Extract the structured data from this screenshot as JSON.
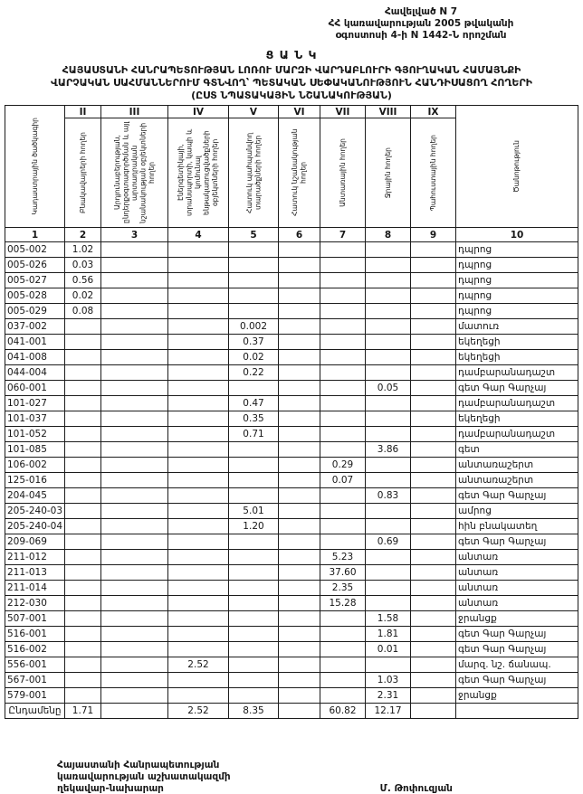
{
  "appendix": {
    "lines": [
      "Հավելված N 7",
      "ՀՀ կառավարության 2005 թվականի",
      "օգոստոսի 4-ի N 1442-Ն որոշման"
    ]
  },
  "title": {
    "list_word": "Ց Ա Ն Կ",
    "lines": [
      "ՀԱՅԱՍՏԱՆԻ ՀԱՆՐԱՊԵՏՈՒԹՅԱՆ ԼՈՌՈՒ ՄԱՐԶԻ ՎԱՐԴԱԲԼՈՒՐԻ ԳՅՈՒՂԱԿԱՆ ՀԱՄԱՅՆՔԻ",
      "ՎԱՐՉԱԿԱՆ ՍԱՀՄԱՆՆԵՐՈՒՄ ԳՏՆՎՈՂ՝ ՊԵՏԱԿԱՆ ՍԵՓԱԿԱՆՈՒԹՅՈՒՆ ՀԱՆԴԻՍԱՑՈՂ ՀՈՂԵՐԻ",
      "(ԸՍՏ ՆՊԱՏԱԿԱՅԻՆ ՆՇԱՆԱԿՈՒԹՅԱՆ)"
    ]
  },
  "table": {
    "roman_numerals": [
      "",
      "II",
      "III",
      "IV",
      "V",
      "VI",
      "VII",
      "VIII",
      "IX",
      ""
    ],
    "column_labels": [
      "Կադաստրային ծածկագիր",
      "Բնակավայրերի հողեր",
      "Արդյունաբերության, ընդերքօգտագործման և այլ արտադրական նշանակության օբյեկտների հողեր",
      "Էներգետիկայի, տրանսպորտի, կապի և կոմունալ ենթակառուցվածքների օբյեկտների հողեր",
      "Հատուկ պահպանվող տարածքների հողեր",
      "Հատուկ նշանակության հողեր",
      "Անտառային հողեր",
      "Ջրային հողեր",
      "Պահուստային հողեր",
      "Ծանոթություն"
    ],
    "column_numbers": [
      "1",
      "2",
      "3",
      "4",
      "5",
      "6",
      "7",
      "8",
      "9",
      "10"
    ],
    "rows": [
      [
        "005-002",
        "1.02",
        "",
        "",
        "",
        "",
        "",
        "",
        "",
        "դպրոց"
      ],
      [
        "005-026",
        "0.03",
        "",
        "",
        "",
        "",
        "",
        "",
        "",
        "դպրոց"
      ],
      [
        "005-027",
        "0.56",
        "",
        "",
        "",
        "",
        "",
        "",
        "",
        "դպրոց"
      ],
      [
        "005-028",
        "0.02",
        "",
        "",
        "",
        "",
        "",
        "",
        "",
        "դպրոց"
      ],
      [
        "005-029",
        "0.08",
        "",
        "",
        "",
        "",
        "",
        "",
        "",
        "դպրոց"
      ],
      [
        "037-002",
        "",
        "",
        "",
        "0.002",
        "",
        "",
        "",
        "",
        "մատուռ"
      ],
      [
        "041-001",
        "",
        "",
        "",
        "0.37",
        "",
        "",
        "",
        "",
        "եկեղեցի"
      ],
      [
        "041-008",
        "",
        "",
        "",
        "0.02",
        "",
        "",
        "",
        "",
        "եկեղեցի"
      ],
      [
        "044-004",
        "",
        "",
        "",
        "0.22",
        "",
        "",
        "",
        "",
        "դամբարանադաշտ"
      ],
      [
        "060-001",
        "",
        "",
        "",
        "",
        "",
        "",
        "0.05",
        "",
        "գետ Գար Գարչայ"
      ],
      [
        "101-027",
        "",
        "",
        "",
        "0.47",
        "",
        "",
        "",
        "",
        "դամբարանադաշտ"
      ],
      [
        "101-037",
        "",
        "",
        "",
        "0.35",
        "",
        "",
        "",
        "",
        "եկեղեցի"
      ],
      [
        "101-052",
        "",
        "",
        "",
        "0.71",
        "",
        "",
        "",
        "",
        "դամբարանադաշտ"
      ],
      [
        "101-085",
        "",
        "",
        "",
        "",
        "",
        "",
        "3.86",
        "",
        "գետ"
      ],
      [
        "106-002",
        "",
        "",
        "",
        "",
        "",
        "0.29",
        "",
        "",
        "անտառաշերտ"
      ],
      [
        "125-016",
        "",
        "",
        "",
        "",
        "",
        "0.07",
        "",
        "",
        "անտառաշերտ"
      ],
      [
        "204-045",
        "",
        "",
        "",
        "",
        "",
        "",
        "0.83",
        "",
        "գետ Գար Գարչայ"
      ],
      [
        "205-240-03",
        "",
        "",
        "",
        "5.01",
        "",
        "",
        "",
        "",
        "ամրոց"
      ],
      [
        "205-240-04",
        "",
        "",
        "",
        "1.20",
        "",
        "",
        "",
        "",
        "հին բնակատեղ"
      ],
      [
        "209-069",
        "",
        "",
        "",
        "",
        "",
        "",
        "0.69",
        "",
        "գետ Գար Գարչայ"
      ],
      [
        "211-012",
        "",
        "",
        "",
        "",
        "",
        "5.23",
        "",
        "",
        "անտառ"
      ],
      [
        "211-013",
        "",
        "",
        "",
        "",
        "",
        "37.60",
        "",
        "",
        "անտառ"
      ],
      [
        "211-014",
        "",
        "",
        "",
        "",
        "",
        "2.35",
        "",
        "",
        "անտառ"
      ],
      [
        "212-030",
        "",
        "",
        "",
        "",
        "",
        "15.28",
        "",
        "",
        "անտառ"
      ],
      [
        "507-001",
        "",
        "",
        "",
        "",
        "",
        "",
        "1.58",
        "",
        "ջրանցք"
      ],
      [
        "516-001",
        "",
        "",
        "",
        "",
        "",
        "",
        "1.81",
        "",
        "գետ Գար Գարչայ"
      ],
      [
        "516-002",
        "",
        "",
        "",
        "",
        "",
        "",
        "0.01",
        "",
        "գետ Գար Գարչայ"
      ],
      [
        "556-001",
        "",
        "",
        "2.52",
        "",
        "",
        "",
        "",
        "",
        "մարզ. նշ. ճանապ."
      ],
      [
        "567-001",
        "",
        "",
        "",
        "",
        "",
        "",
        "1.03",
        "",
        "գետ Գար Գարչայ"
      ],
      [
        "579-001",
        "",
        "",
        "",
        "",
        "",
        "",
        "2.31",
        "",
        "ջրանցք"
      ]
    ],
    "totals": [
      "Ընդամենը",
      "1.71",
      "",
      "2.52",
      "8.35",
      "",
      "60.82",
      "12.17",
      "",
      ""
    ]
  },
  "footer": {
    "signatory_lines": [
      "Հայաստանի Հանրապետության",
      "կառավարության աշխատակազմի",
      "ղեկավար-նախարար"
    ],
    "signatory_name": "Մ. Թոփուզյան"
  }
}
